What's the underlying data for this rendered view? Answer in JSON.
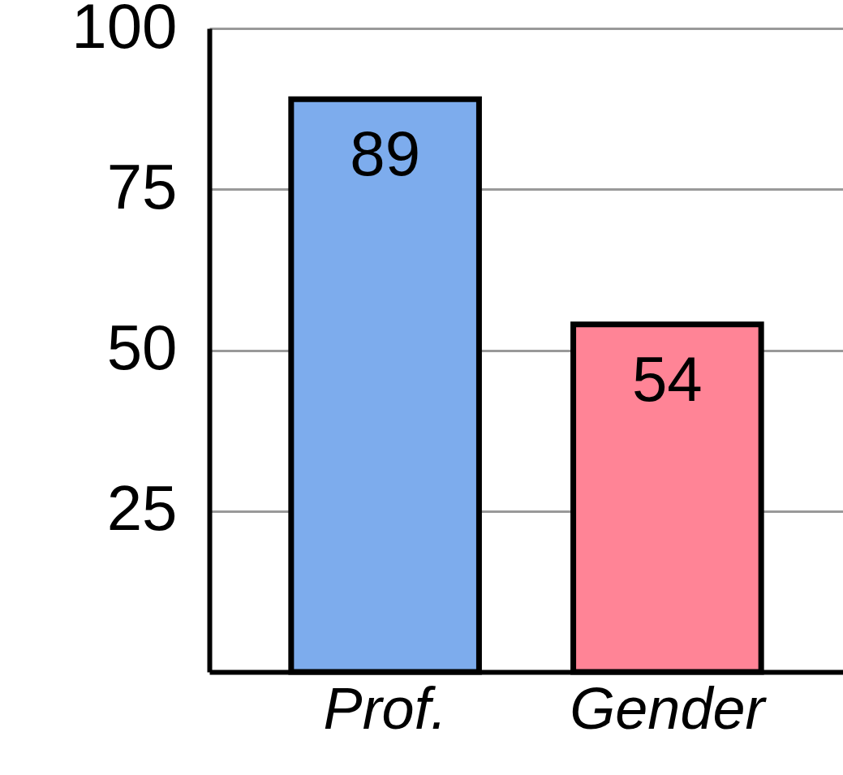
{
  "chart_data": {
    "type": "bar",
    "categories": [
      "Prof.",
      "Gender"
    ],
    "values": [
      89,
      54
    ],
    "colors": [
      "#7daced",
      "#ff8496"
    ],
    "ylim": [
      0,
      100
    ],
    "yticks": [
      25,
      50,
      75,
      100
    ],
    "grid": "y",
    "data_labels": true
  }
}
